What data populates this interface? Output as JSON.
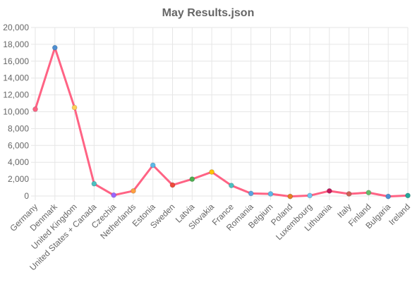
{
  "chart_data": {
    "type": "line",
    "title": "May Results.json",
    "categories": [
      "Germany",
      "Denmark",
      "United Kingdom",
      "United States + Canada",
      "Czechia",
      "Netherlands",
      "Estonia",
      "Sweden",
      "Latvia",
      "Slovakia",
      "France",
      "Romania",
      "Belgium",
      "Poland",
      "Luxembourg",
      "Lithuania",
      "Italy",
      "Finland",
      "Bulgaria",
      "Ireland"
    ],
    "series": [
      {
        "values": [
          10300,
          17600,
          10500,
          1450,
          100,
          600,
          3650,
          1300,
          2000,
          2850,
          1250,
          300,
          250,
          -50,
          50,
          600,
          250,
          400,
          -50,
          50
        ],
        "color": "#ff6384"
      }
    ],
    "point_colors": [
      "#ff6384",
      "#4e8fd1",
      "#ffcd56",
      "#4bc0c0",
      "#9966ff",
      "#ff9f40",
      "#5bb9e8",
      "#ee4a3a",
      "#4caf50",
      "#ffc107",
      "#4bc0c0",
      "#5ba3e0",
      "#5bb9e8",
      "#e67e22",
      "#6ec6f0",
      "#c2185b",
      "#cd6155",
      "#66bb6a",
      "#4e8fd1",
      "#26a69a"
    ],
    "ylim": [
      0,
      20000
    ],
    "yticks": [
      "20,000",
      "18,000",
      "16,000",
      "14,000",
      "12,000",
      "10,000",
      "8,000",
      "6,000",
      "4,000",
      "2,000",
      "0"
    ],
    "grid": true,
    "legend": "none"
  }
}
